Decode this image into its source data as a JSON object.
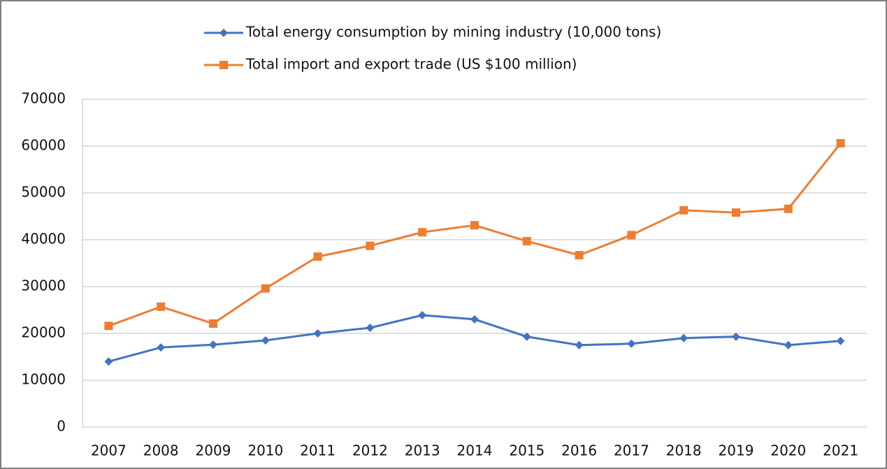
{
  "chart_data": {
    "type": "line",
    "categories": [
      "2007",
      "2008",
      "2009",
      "2010",
      "2011",
      "2012",
      "2013",
      "2014",
      "2015",
      "2016",
      "2017",
      "2018",
      "2019",
      "2020",
      "2021"
    ],
    "series": [
      {
        "name": "Total energy consumption by mining industry (10,000 tons)",
        "color": "#4472c4",
        "marker": "diamond",
        "values": [
          14000,
          17000,
          17600,
          18500,
          20000,
          21200,
          23900,
          23000,
          19300,
          17500,
          17800,
          19000,
          19300,
          17500,
          18400
        ]
      },
      {
        "name": "Total import and export trade (US $100 million)",
        "color": "#ed7d31",
        "marker": "square",
        "values": [
          21600,
          25700,
          22100,
          29600,
          36400,
          38700,
          41600,
          43100,
          39700,
          36700,
          41000,
          46300,
          45800,
          46600,
          60600
        ]
      }
    ],
    "ylim": [
      0,
      70000
    ],
    "yticks": [
      0,
      10000,
      20000,
      30000,
      40000,
      50000,
      60000,
      70000
    ],
    "grid": true,
    "legend": "top"
  }
}
